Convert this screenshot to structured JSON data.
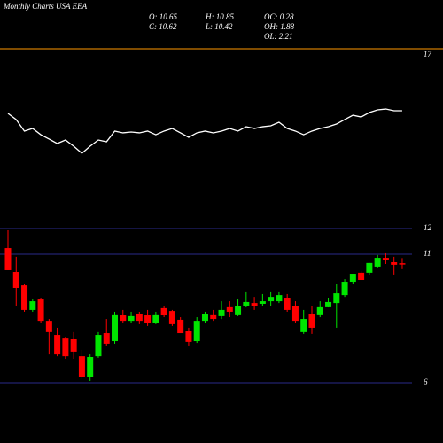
{
  "chart_data": [
    {
      "type": "candlestick",
      "title": "Monthly Charts USA EEA",
      "stats": [
        "O: 10.65",
        "H: 10.85",
        "OC: 0.28",
        "C: 10.62",
        "L: 10.42",
        "OH: 1.88",
        "OL: 2.21"
      ],
      "up_color": "#00e600",
      "down_color": "#ff0000",
      "ylim": [
        6,
        12
      ],
      "yticks": [
        6,
        11,
        12
      ],
      "grid": true,
      "open": [
        11.24,
        10.31,
        9.79,
        8.83,
        9.24,
        8.41,
        7.86,
        7.72,
        7.69,
        7.03,
        6.24,
        7.03,
        7.93,
        7.62,
        8.62,
        8.41,
        8.69,
        8.62,
        8.34,
        8.9,
        8.79,
        8.45,
        8.0,
        7.62,
        8.41,
        8.66,
        8.59,
        8.97,
        8.66,
        9.0,
        9.1,
        9.07,
        9.17,
        9.17,
        9.31,
        9.0,
        7.97,
        8.69,
        8.66,
        8.97,
        9.1,
        9.41,
        9.93,
        10.28,
        10.28,
        10.52,
        10.86,
        10.69,
        10.65
      ],
      "high": [
        11.93,
        10.9,
        9.86,
        9.24,
        9.31,
        8.48,
        8.14,
        7.79,
        7.97,
        7.28,
        7.1,
        7.97,
        8.48,
        8.76,
        8.83,
        8.76,
        8.76,
        8.83,
        8.76,
        9.0,
        8.83,
        8.55,
        8.14,
        8.55,
        8.76,
        8.83,
        9.17,
        9.17,
        9.24,
        9.52,
        9.34,
        9.45,
        9.52,
        9.52,
        9.45,
        9.17,
        8.83,
        9.0,
        9.17,
        9.31,
        9.86,
        10.03,
        10.24,
        10.34,
        10.66,
        10.97,
        11.07,
        10.9,
        10.85
      ],
      "low": [
        10.38,
        9.0,
        8.76,
        8.76,
        8.31,
        7.1,
        7.03,
        6.93,
        6.93,
        6.14,
        6.07,
        6.97,
        7.45,
        7.52,
        8.31,
        8.31,
        8.28,
        8.21,
        8.28,
        8.55,
        8.21,
        7.93,
        7.45,
        7.55,
        8.31,
        8.41,
        8.48,
        8.55,
        8.59,
        8.93,
        8.83,
        9.0,
        9.0,
        9.1,
        8.76,
        8.31,
        7.9,
        7.9,
        8.55,
        8.93,
        8.14,
        9.34,
        9.86,
        10.0,
        10.21,
        10.48,
        10.62,
        10.21,
        10.42
      ],
      "close": [
        10.38,
        9.69,
        8.83,
        9.17,
        8.41,
        7.97,
        7.1,
        7.03,
        7.21,
        6.24,
        7.0,
        7.86,
        7.52,
        8.66,
        8.41,
        8.59,
        8.41,
        8.31,
        8.66,
        8.62,
        8.28,
        7.93,
        7.59,
        8.41,
        8.69,
        8.48,
        8.83,
        8.76,
        9.0,
        9.14,
        9.0,
        9.17,
        9.34,
        9.41,
        8.83,
        8.41,
        8.48,
        8.14,
        8.97,
        9.14,
        9.48,
        9.93,
        10.24,
        10.0,
        10.66,
        10.86,
        10.79,
        10.59,
        10.62
      ]
    },
    {
      "type": "line",
      "color": "#ffffff",
      "ylim": [
        0,
        17
      ],
      "yticks": [
        17
      ],
      "values": [
        10.7,
        10.03,
        8.79,
        9.07,
        8.4,
        7.93,
        7.45,
        7.83,
        7.16,
        6.4,
        7.16,
        7.83,
        7.64,
        8.79,
        8.6,
        8.69,
        8.6,
        8.79,
        8.4,
        8.79,
        9.07,
        8.6,
        8.12,
        8.6,
        8.79,
        8.6,
        8.79,
        9.07,
        8.79,
        9.26,
        9.07,
        9.26,
        9.36,
        9.74,
        9.07,
        8.79,
        8.4,
        8.79,
        9.07,
        9.26,
        9.55,
        10.03,
        10.5,
        10.31,
        10.79,
        11.08,
        11.17,
        10.98,
        10.98
      ]
    }
  ]
}
